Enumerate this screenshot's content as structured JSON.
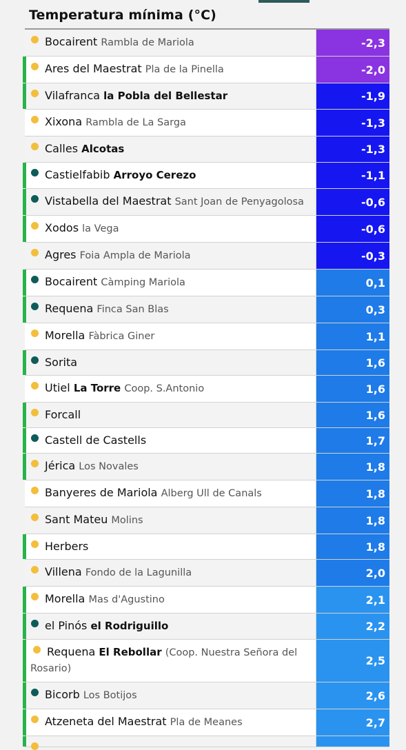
{
  "title": "Temperatura mínima (°C)",
  "rows": [
    {
      "name": "Bocairent",
      "sub": "Rambla de Mariola",
      "sub_bold": false,
      "value": "-2,3",
      "icon": "sun-icon",
      "green": false,
      "color": "#8a33e0"
    },
    {
      "name": "Ares del Maestrat",
      "sub": "Pla de la Pinella",
      "sub_bold": false,
      "value": "-2,0",
      "icon": "sun-icon",
      "green": true,
      "color": "#8a33e0"
    },
    {
      "name": "Vilafranca",
      "sub": "la Pobla del Bellestar",
      "sub_bold": true,
      "value": "-1,9",
      "icon": "sun-icon",
      "green": true,
      "color": "#1616f0"
    },
    {
      "name": "Xixona",
      "sub": "Rambla de La Sarga",
      "sub_bold": false,
      "value": "-1,3",
      "icon": "sun-icon",
      "green": false,
      "color": "#1616f0"
    },
    {
      "name": "Calles",
      "sub": "Alcotas",
      "sub_bold": true,
      "value": "-1,3",
      "icon": "sun-icon",
      "green": false,
      "color": "#1616f0"
    },
    {
      "name": "Castielfabib",
      "sub": "Arroyo Cerezo",
      "sub_bold": true,
      "value": "-1,1",
      "icon": "station-icon",
      "green": true,
      "color": "#1616f0"
    },
    {
      "name": "Vistabella del Maestrat",
      "sub": "Sant Joan de Penyagolosa",
      "sub_bold": false,
      "value": "-0,6",
      "icon": "station-icon",
      "green": true,
      "color": "#1616f0"
    },
    {
      "name": "Xodos",
      "sub": "la Vega",
      "sub_bold": false,
      "value": "-0,6",
      "icon": "sun-icon",
      "green": true,
      "color": "#1616f0"
    },
    {
      "name": "Agres",
      "sub": "Foia Ampla de Mariola",
      "sub_bold": false,
      "value": "-0,3",
      "icon": "sun-icon",
      "green": false,
      "color": "#1616f0"
    },
    {
      "name": "Bocairent",
      "sub": "Càmping Mariola",
      "sub_bold": false,
      "value": "0,1",
      "icon": "station-icon",
      "green": true,
      "color": "#1e7be8"
    },
    {
      "name": "Requena",
      "sub": "Finca San Blas",
      "sub_bold": false,
      "value": "0,3",
      "icon": "station-icon",
      "green": true,
      "color": "#1e7be8"
    },
    {
      "name": "Morella",
      "sub": "Fàbrica Giner",
      "sub_bold": false,
      "value": "1,1",
      "icon": "sun-icon",
      "green": false,
      "color": "#1e7be8"
    },
    {
      "name": "Sorita",
      "sub": "",
      "sub_bold": false,
      "value": "1,6",
      "icon": "station-icon",
      "green": true,
      "color": "#1e7be8"
    },
    {
      "name": "Utiel",
      "sub": "La Torre",
      "sub_bold": true,
      "extra": "Coop. S.Antonio",
      "value": "1,6",
      "icon": "sun-icon",
      "green": false,
      "color": "#1e7be8"
    },
    {
      "name": "Forcall",
      "sub": "",
      "sub_bold": false,
      "value": "1,6",
      "icon": "sun-icon",
      "green": true,
      "color": "#1e7be8"
    },
    {
      "name": "Castell de Castells",
      "sub": "",
      "sub_bold": false,
      "value": "1,7",
      "icon": "station-icon",
      "green": true,
      "color": "#1e7be8"
    },
    {
      "name": "Jérica",
      "sub": "Los Novales",
      "sub_bold": false,
      "value": "1,8",
      "icon": "sun-icon",
      "green": true,
      "color": "#1e7be8"
    },
    {
      "name": "Banyeres de Mariola",
      "sub": "Alberg Ull de Canals",
      "sub_bold": false,
      "value": "1,8",
      "icon": "sun-icon",
      "green": false,
      "color": "#1e7be8"
    },
    {
      "name": "Sant Mateu",
      "sub": "Molins",
      "sub_bold": false,
      "value": "1,8",
      "icon": "sun-icon",
      "green": false,
      "color": "#1e7be8"
    },
    {
      "name": "Herbers",
      "sub": "",
      "sub_bold": false,
      "value": "1,8",
      "icon": "sun-icon",
      "green": true,
      "color": "#1e7be8"
    },
    {
      "name": "Villena",
      "sub": "Fondo de la Lagunilla",
      "sub_bold": false,
      "value": "2,0",
      "icon": "sun-icon",
      "green": false,
      "color": "#1e7be8"
    },
    {
      "name": "Morella",
      "sub": "Mas d'Agustino",
      "sub_bold": false,
      "value": "2,1",
      "icon": "sun-icon",
      "green": true,
      "color": "#2a93ef"
    },
    {
      "name": "el Pinós",
      "sub": "el Rodriguillo",
      "sub_bold": true,
      "value": "2,2",
      "icon": "station-icon",
      "green": true,
      "color": "#2a93ef"
    },
    {
      "name": "Requena",
      "sub": "El Rebollar",
      "sub_bold": true,
      "extra": "(Coop. Nuestra Señora del Rosario)",
      "value": "2,5",
      "icon": "sun-icon",
      "green": true,
      "color": "#2a93ef",
      "wrap": true
    },
    {
      "name": "Bicorb",
      "sub": "Los Botijos",
      "sub_bold": false,
      "value": "2,6",
      "icon": "station-icon",
      "green": true,
      "color": "#2a93ef"
    },
    {
      "name": "Atzeneta del Maestrat",
      "sub": "Pla de Meanes",
      "sub_bold": false,
      "value": "2,7",
      "icon": "sun-icon",
      "green": true,
      "color": "#2a93ef"
    },
    {
      "name": "",
      "sub": "",
      "sub_bold": false,
      "value": "",
      "icon": "sun-icon",
      "green": true,
      "color": "#2a93ef"
    }
  ]
}
